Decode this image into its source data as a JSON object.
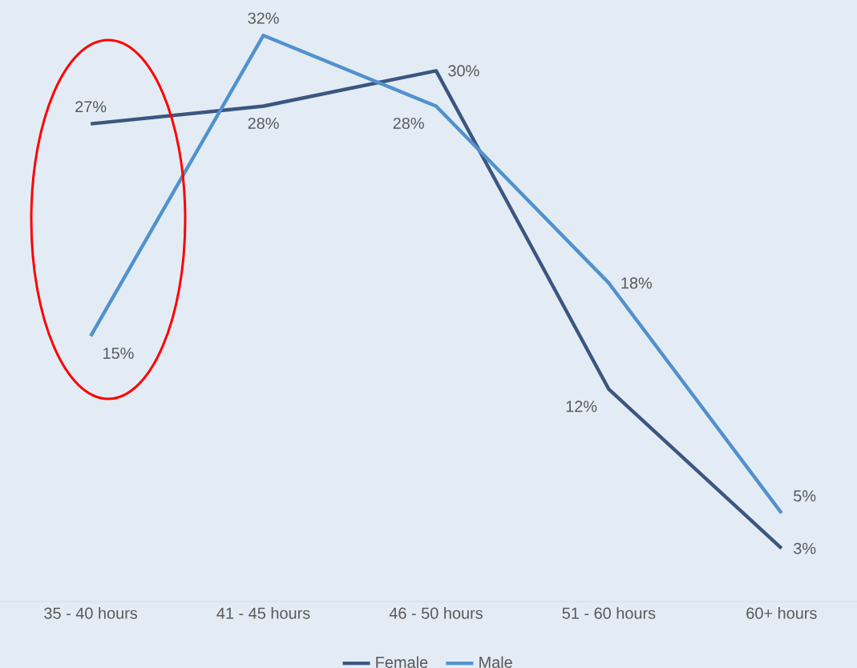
{
  "chart_data": {
    "type": "line",
    "categories": [
      "35 - 40 hours",
      "41 - 45 hours",
      "46 - 50 hours",
      "51 - 60 hours",
      "60+ hours"
    ],
    "series": [
      {
        "name": "Female",
        "color": "#3b5680",
        "values": [
          27,
          28,
          30,
          12,
          3
        ],
        "value_labels": [
          "27%",
          "28%",
          "30%",
          "12%",
          "3%"
        ]
      },
      {
        "name": "Male",
        "color": "#5191cd",
        "values": [
          15,
          32,
          28,
          18,
          5
        ],
        "value_labels": [
          "15%",
          "32%",
          "28%",
          "18%",
          "5%"
        ]
      }
    ],
    "ylim": [
      0,
      34
    ],
    "tick_labels": "x",
    "legend": "bottom",
    "marker": "none",
    "line_style": "solid"
  }
}
